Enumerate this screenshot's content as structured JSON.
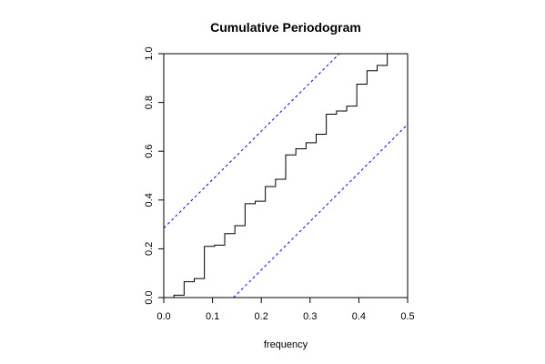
{
  "chart_data": {
    "type": "line",
    "title": "Cumulative Periodogram",
    "xlabel": "frequency",
    "ylabel": "",
    "xlim": [
      0,
      0.5
    ],
    "ylim": [
      0,
      1
    ],
    "x_ticks": [
      0,
      0.1,
      0.2,
      0.3,
      0.4,
      0.5
    ],
    "x_tick_labels": [
      "0.0",
      "0.1",
      "0.2",
      "0.3",
      "0.4",
      "0.5"
    ],
    "y_ticks": [
      0,
      0.2,
      0.4,
      0.6,
      0.8,
      1.0
    ],
    "y_tick_labels": [
      "0.0",
      "0.2",
      "0.4",
      "0.6",
      "0.8",
      "1.0"
    ],
    "grid": false,
    "legend": "none",
    "series": [
      {
        "style": "step",
        "color": "#000000",
        "x": [
          0.0,
          0.0208,
          0.0417,
          0.0625,
          0.0833,
          0.1042,
          0.125,
          0.1458,
          0.1667,
          0.1875,
          0.2083,
          0.2292,
          0.25,
          0.2708,
          0.2917,
          0.3125,
          0.3333,
          0.3542,
          0.375,
          0.3958,
          0.4167,
          0.4375,
          0.4583,
          0.4792
        ],
        "y": [
          0.0,
          0.01,
          0.065,
          0.078,
          0.21,
          0.215,
          0.262,
          0.295,
          0.385,
          0.395,
          0.455,
          0.485,
          0.585,
          0.61,
          0.635,
          0.67,
          0.752,
          0.765,
          0.785,
          0.875,
          0.93,
          0.952,
          1.0,
          1.0
        ]
      },
      {
        "style": "dashed",
        "color": "#0000ff",
        "x": [
          0.0,
          0.36
        ],
        "y": [
          0.285,
          1.0
        ]
      },
      {
        "style": "dashed",
        "color": "#0000ff",
        "x": [
          0.143,
          0.5
        ],
        "y": [
          0.0,
          0.71
        ]
      }
    ]
  }
}
